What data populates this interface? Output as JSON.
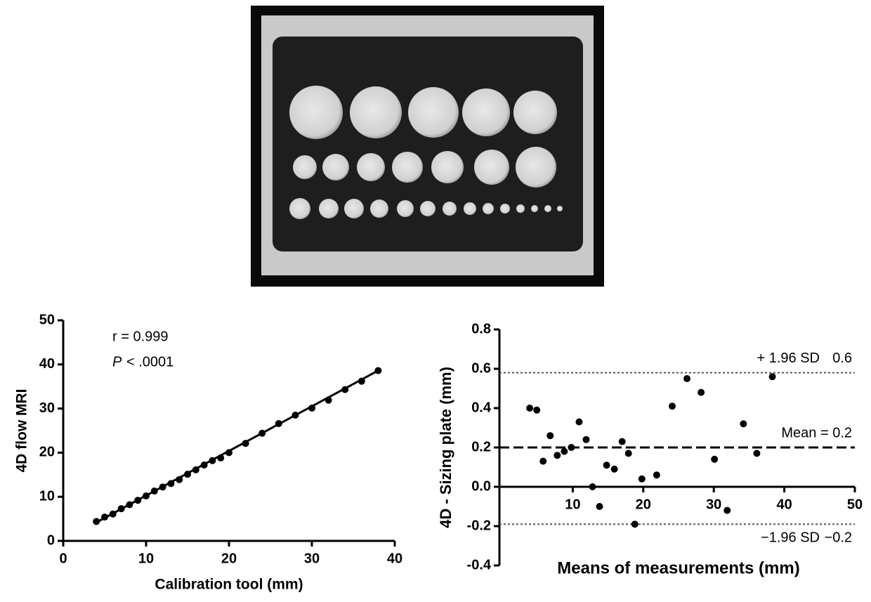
{
  "chart_data": [
    {
      "type": "scatter",
      "x_label": "Calibration tool (mm)",
      "y_label": "4D flow MRI",
      "annotations": [
        "r = 0.999",
        "P",
        "< .0001"
      ],
      "x": [
        4,
        5,
        6,
        7,
        8,
        9,
        10,
        11,
        12,
        13,
        14,
        15,
        16,
        17,
        18,
        19,
        20,
        22,
        24,
        26,
        28,
        30,
        32,
        34,
        36,
        38
      ],
      "values": [
        4.4,
        5.4,
        6.1,
        7.3,
        8.2,
        9.2,
        10.2,
        11.3,
        12.2,
        13.0,
        13.9,
        15.1,
        16.1,
        17.2,
        18.2,
        18.8,
        20.0,
        22.1,
        24.4,
        26.6,
        28.5,
        30.1,
        31.9,
        34.3,
        36.2,
        38.6
      ],
      "color": "#000000",
      "fit": {
        "x": [
          4,
          38
        ],
        "y": [
          4.2,
          38.6
        ]
      },
      "xlim": [
        0,
        40
      ],
      "xticks": [
        0,
        10,
        20,
        30,
        40
      ],
      "ylim": [
        0,
        50
      ],
      "yticks": [
        0,
        10,
        20,
        30,
        40,
        50
      ]
    },
    {
      "type": "scatter",
      "x_label": "Means of measurements (mm)",
      "y_label": "4D - Sizing plate (mm)",
      "x": [
        3.9,
        4.9,
        5.8,
        6.8,
        7.8,
        8.8,
        9.8,
        10.9,
        11.9,
        12.8,
        13.8,
        14.8,
        15.9,
        17.0,
        17.9,
        18.8,
        19.8,
        21.9,
        24.1,
        26.2,
        28.2,
        30.1,
        31.9,
        34.2,
        36.1,
        38.3
      ],
      "values": [
        0.4,
        0.39,
        0.13,
        0.26,
        0.16,
        0.18,
        0.2,
        0.33,
        0.24,
        0.0,
        -0.1,
        0.11,
        0.09,
        0.23,
        0.17,
        -0.19,
        0.04,
        0.06,
        0.41,
        0.55,
        0.48,
        0.14,
        -0.12,
        0.32,
        0.17,
        0.56
      ],
      "color": "#000000",
      "ref_lines": [
        {
          "value": 0.58,
          "label": "+ 1.96 SD",
          "value_label": "0.6",
          "style": "dotted"
        },
        {
          "value": 0.2,
          "label": "Mean = 0.2",
          "style": "dashed"
        },
        {
          "value": -0.19,
          "label": "−1.96 SD",
          "value_label": "−0.2",
          "style": "dotted"
        }
      ],
      "xlim": [
        0,
        50
      ],
      "xticks": [
        10,
        20,
        30,
        40,
        50
      ],
      "ylim": [
        -0.4,
        0.8
      ],
      "yticks": [
        -0.4,
        -0.2,
        {
          "value": 0,
          "label": "0.0"
        },
        0.2,
        0.4,
        0.6,
        0.8
      ]
    }
  ]
}
